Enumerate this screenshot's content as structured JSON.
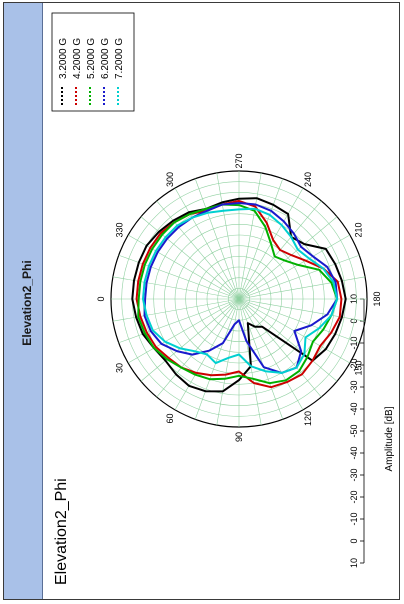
{
  "page": {
    "title": "Elevation2_Phi"
  },
  "chart_data": {
    "type": "polar-line",
    "title": "Elevation2_Phi",
    "ylabel": "Amplitude [dB]",
    "rlim": [
      -50,
      10
    ],
    "r_ticks": [
      10,
      0,
      -10,
      -20,
      -30,
      -40,
      -50,
      -40,
      -30,
      -20,
      -10,
      0,
      10
    ],
    "angle_ticks": [
      0,
      30,
      60,
      90,
      120,
      150,
      180,
      210,
      240,
      270,
      300,
      330
    ],
    "angle_step": 10,
    "grid": true,
    "legend_position": "top-right",
    "series": [
      {
        "name": "3.2000 G",
        "color": "#000000",
        "angles": [
          0,
          10,
          20,
          30,
          40,
          50,
          60,
          70,
          80,
          90,
          100,
          110,
          120,
          130,
          140,
          150,
          160,
          170,
          180,
          190,
          200,
          210,
          220,
          230,
          240,
          250,
          260,
          270,
          280,
          290,
          300,
          310,
          320,
          330,
          340,
          350
        ],
        "values": [
          0,
          -1,
          -2,
          -4,
          -5,
          -4,
          -3,
          -4,
          -6,
          -12,
          -18,
          -38,
          -35,
          -33,
          -5,
          -3,
          -2,
          -1,
          0,
          -1,
          -2,
          -3,
          -10,
          -12,
          -4,
          -3,
          -2,
          -3,
          -4,
          -5,
          -3,
          -2,
          -1,
          0,
          0,
          0
        ]
      },
      {
        "name": "4.2000 G",
        "color": "#cc0000",
        "angles": [
          0,
          10,
          20,
          30,
          40,
          50,
          60,
          70,
          80,
          90,
          100,
          110,
          120,
          130,
          140,
          150,
          160,
          170,
          180,
          190,
          200,
          210,
          220,
          230,
          240,
          250,
          260,
          270,
          280,
          290,
          300,
          310,
          320,
          330,
          340,
          350
        ],
        "values": [
          -2,
          -3,
          -4,
          -5,
          -7,
          -8,
          -10,
          -12,
          -14,
          -16,
          -10,
          -6,
          -5,
          -4,
          -5,
          -6,
          -4,
          -2,
          -2,
          -3,
          -8,
          -14,
          -18,
          -20,
          -18,
          -12,
          -6,
          -4,
          -5,
          -6,
          -4,
          -3,
          -2,
          -2,
          -2,
          -2
        ]
      },
      {
        "name": "5.2000 G",
        "color": "#00b000",
        "angles": [
          0,
          10,
          20,
          30,
          40,
          50,
          60,
          70,
          80,
          90,
          100,
          110,
          120,
          130,
          140,
          150,
          160,
          170,
          180,
          190,
          200,
          210,
          220,
          230,
          240,
          250,
          260,
          270,
          280,
          290,
          300,
          310,
          320,
          330,
          340,
          350
        ],
        "values": [
          -3,
          -2,
          -3,
          -4,
          -6,
          -8,
          -9,
          -10,
          -12,
          -14,
          -12,
          -8,
          -6,
          -6,
          -8,
          -10,
          -8,
          -6,
          -4,
          -6,
          -10,
          -18,
          -22,
          -24,
          -20,
          -14,
          -8,
          -6,
          -5,
          -5,
          -4,
          -3,
          -3,
          -3,
          -3,
          -3
        ]
      },
      {
        "name": "6.2000 G",
        "color": "#1a1acc",
        "angles": [
          0,
          10,
          20,
          30,
          40,
          50,
          60,
          70,
          80,
          90,
          100,
          110,
          120,
          130,
          140,
          150,
          160,
          170,
          180,
          190,
          200,
          210,
          220,
          230,
          240,
          250,
          260,
          270,
          280,
          290,
          300,
          310,
          320,
          330,
          340,
          350
        ],
        "values": [
          -6,
          -5,
          -6,
          -8,
          -12,
          -16,
          -22,
          -28,
          -38,
          -40,
          -30,
          -16,
          -10,
          -8,
          -12,
          -20,
          -14,
          -8,
          -4,
          -4,
          -6,
          -10,
          -12,
          -10,
          -8,
          -6,
          -5,
          -5,
          -5,
          -6,
          -6,
          -6,
          -6,
          -6,
          -6,
          -6
        ]
      },
      {
        "name": "7.2000 G",
        "color": "#00d0d0",
        "angles": [
          0,
          10,
          20,
          30,
          40,
          50,
          60,
          70,
          80,
          90,
          100,
          110,
          120,
          130,
          140,
          150,
          160,
          170,
          180,
          190,
          200,
          210,
          220,
          230,
          240,
          250,
          260,
          270,
          280,
          290,
          300,
          310,
          320,
          330,
          340,
          350
        ],
        "values": [
          -5,
          -6,
          -7,
          -10,
          -14,
          -18,
          -20,
          -18,
          -22,
          -24,
          -18,
          -14,
          -10,
          -8,
          -10,
          -14,
          -10,
          -6,
          -4,
          -5,
          -8,
          -12,
          -14,
          -12,
          -10,
          -8,
          -7,
          -8,
          -8,
          -7,
          -6,
          -5,
          -5,
          -5,
          -5,
          -5
        ]
      }
    ]
  }
}
